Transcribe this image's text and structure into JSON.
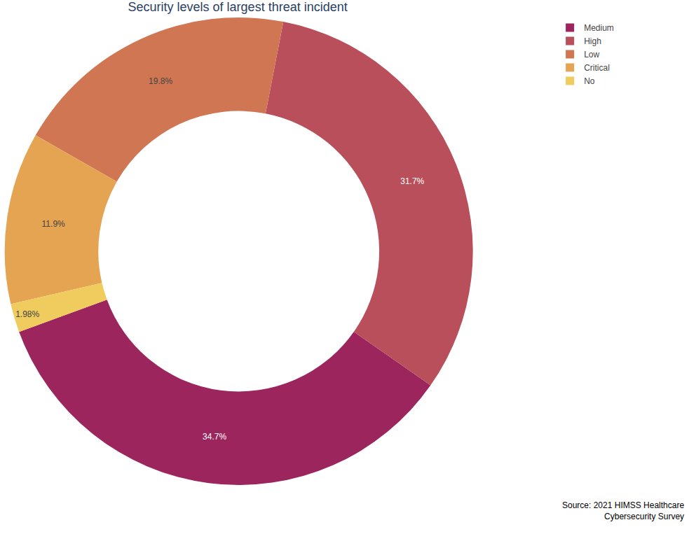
{
  "chart_data": {
    "type": "donut",
    "title": "Security levels of largest threat incident",
    "categories": [
      "Medium",
      "High",
      "Low",
      "Critical",
      "No"
    ],
    "values": [
      34.7,
      31.7,
      19.8,
      11.9,
      1.98
    ],
    "value_labels": [
      "34.7%",
      "31.7%",
      "19.8%",
      "11.9%",
      "1.98%"
    ],
    "colors": [
      "#9b255c",
      "#b84f5a",
      "#d07653",
      "#e4a452",
      "#f0cb5e"
    ],
    "data_labels": true,
    "legend": "top right",
    "source": [
      "Source: 2021 HIMSS Healthcare",
      "Cybersecurity Survey"
    ]
  }
}
